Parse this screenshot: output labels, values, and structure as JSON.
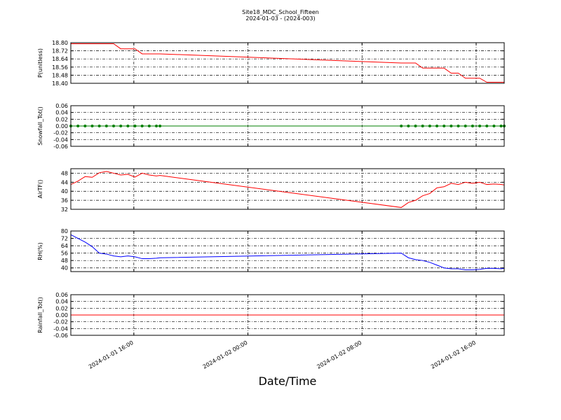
{
  "figure": {
    "title": "Site18_MDC_School_Fifteen",
    "subtitle": "2024-01-03 - (2024-003)",
    "x_label": "Date/Time"
  },
  "chart_data": [
    {
      "type": "line",
      "y_label": "P(unitless)",
      "ylim": [
        18.4,
        18.8
      ],
      "yticks": [
        {
          "value": 18.4,
          "label": "18.40"
        },
        18.48,
        18.56,
        18.64,
        18.72,
        {
          "value": 18.8,
          "label": "18.80"
        }
      ],
      "xlim": [
        "2024-01-01 11:35",
        "2024-01-02 17:58"
      ],
      "xticks": [
        "2024-01-01 16:00",
        "2024-01-02 00:00",
        "2024-01-02 08:00",
        "2024-01-02 16:00"
      ],
      "grid": true,
      "markers": false,
      "x": [
        "2024-01-01 11:35",
        "2024-01-01 12:05",
        "2024-01-01 12:35",
        "2024-01-01 13:05",
        "2024-01-01 13:35",
        "2024-01-01 14:05",
        "2024-01-01 14:35",
        "2024-01-01 15:05",
        "2024-01-01 15:35",
        "2024-01-01 16:05",
        "2024-01-01 16:35",
        "2024-01-01 17:05",
        "2024-01-01 17:35",
        "2024-01-01 17:50",
        "2024-01-02 10:45",
        "2024-01-02 11:15",
        "2024-01-02 11:45",
        "2024-01-02 12:15",
        "2024-01-02 12:45",
        "2024-01-02 13:15",
        "2024-01-02 13:45",
        "2024-01-02 14:15",
        "2024-01-02 14:45",
        "2024-01-02 15:15",
        "2024-01-02 15:45",
        "2024-01-02 16:15",
        "2024-01-02 16:45",
        "2024-01-02 17:15",
        "2024-01-02 17:45",
        "2024-01-02 17:58"
      ],
      "series": [
        {
          "color": "#ff0000",
          "values": [
            18.79,
            18.79,
            18.79,
            18.79,
            18.79,
            18.79,
            18.79,
            18.74,
            18.74,
            18.74,
            18.69,
            18.69,
            18.69,
            18.69,
            18.6,
            18.6,
            18.6,
            18.55,
            18.55,
            18.55,
            18.55,
            18.5,
            18.5,
            18.45,
            18.45,
            18.45,
            18.41,
            18.41,
            18.41,
            18.41
          ]
        }
      ]
    },
    {
      "type": "line",
      "y_label": "Snowfall_Tot()",
      "ylim": [
        -0.06,
        0.06
      ],
      "yticks": [
        -0.06,
        -0.04,
        -0.02,
        {
          "value": 0,
          "label": "0.00"
        },
        0.02,
        0.04,
        0.06
      ],
      "xlim": [
        "2024-01-01 11:35",
        "2024-01-02 17:58"
      ],
      "xticks": [
        "2024-01-01 16:00",
        "2024-01-02 00:00",
        "2024-01-02 08:00",
        "2024-01-02 16:00"
      ],
      "grid": true,
      "markers": true,
      "x": [
        "2024-01-01 11:35",
        "2024-01-01 12:05",
        "2024-01-01 12:35",
        "2024-01-01 13:05",
        "2024-01-01 13:35",
        "2024-01-01 14:05",
        "2024-01-01 14:35",
        "2024-01-01 15:05",
        "2024-01-01 15:35",
        "2024-01-01 16:05",
        "2024-01-01 16:35",
        "2024-01-01 17:05",
        "2024-01-01 17:35",
        "2024-01-01 17:50",
        "2024-01-02 10:45",
        "2024-01-02 11:15",
        "2024-01-02 11:45",
        "2024-01-02 12:15",
        "2024-01-02 12:45",
        "2024-01-02 13:15",
        "2024-01-02 13:45",
        "2024-01-02 14:15",
        "2024-01-02 14:45",
        "2024-01-02 15:15",
        "2024-01-02 15:45",
        "2024-01-02 16:15",
        "2024-01-02 16:45",
        "2024-01-02 17:15",
        "2024-01-02 17:45",
        "2024-01-02 17:58"
      ],
      "series": [
        {
          "color": "#007f00",
          "values": [
            0,
            0,
            0,
            0,
            0,
            0,
            0,
            0,
            0,
            0,
            0,
            0,
            0,
            0,
            0,
            0,
            0,
            0,
            0,
            0,
            0,
            0,
            0,
            0,
            0,
            0,
            0,
            0,
            0,
            0
          ]
        }
      ]
    },
    {
      "type": "line",
      "y_label": "AirTF()",
      "ylim": [
        32,
        50
      ],
      "yticks": [
        32,
        36,
        40,
        44,
        48
      ],
      "xlim": [
        "2024-01-01 11:35",
        "2024-01-02 17:58"
      ],
      "xticks": [
        "2024-01-01 16:00",
        "2024-01-02 00:00",
        "2024-01-02 08:00",
        "2024-01-02 16:00"
      ],
      "grid": true,
      "markers": false,
      "x": [
        "2024-01-01 11:35",
        "2024-01-01 12:05",
        "2024-01-01 12:35",
        "2024-01-01 13:05",
        "2024-01-01 13:35",
        "2024-01-01 14:05",
        "2024-01-01 14:35",
        "2024-01-01 15:05",
        "2024-01-01 15:35",
        "2024-01-01 16:05",
        "2024-01-01 16:35",
        "2024-01-01 17:05",
        "2024-01-01 17:35",
        "2024-01-01 17:50",
        "2024-01-02 10:45",
        "2024-01-02 11:15",
        "2024-01-02 11:45",
        "2024-01-02 12:15",
        "2024-01-02 12:45",
        "2024-01-02 13:15",
        "2024-01-02 13:45",
        "2024-01-02 14:15",
        "2024-01-02 14:45",
        "2024-01-02 15:15",
        "2024-01-02 15:45",
        "2024-01-02 16:15",
        "2024-01-02 16:45",
        "2024-01-02 17:15",
        "2024-01-02 17:45",
        "2024-01-02 17:58"
      ],
      "series": [
        {
          "color": "#ff0000",
          "values": [
            43,
            44.5,
            46.5,
            46.2,
            48.2,
            48.8,
            48,
            47.2,
            47.5,
            46.3,
            48,
            47.2,
            46.8,
            47,
            32.8,
            35,
            36,
            38,
            39,
            41.5,
            42,
            43.5,
            43,
            44,
            43.5,
            44,
            43,
            43.2,
            43,
            42.8
          ]
        }
      ]
    },
    {
      "type": "line",
      "y_label": "RH(%)",
      "ylim": [
        36,
        80
      ],
      "yticks": [
        40,
        48,
        56,
        64,
        72,
        80
      ],
      "xlim": [
        "2024-01-01 11:35",
        "2024-01-02 17:58"
      ],
      "xticks": [
        "2024-01-01 16:00",
        "2024-01-02 00:00",
        "2024-01-02 08:00",
        "2024-01-02 16:00"
      ],
      "grid": true,
      "markers": false,
      "x": [
        "2024-01-01 11:35",
        "2024-01-01 12:05",
        "2024-01-01 12:35",
        "2024-01-01 13:05",
        "2024-01-01 13:35",
        "2024-01-01 14:05",
        "2024-01-01 14:35",
        "2024-01-01 15:05",
        "2024-01-01 15:35",
        "2024-01-01 16:05",
        "2024-01-01 16:35",
        "2024-01-01 17:05",
        "2024-01-01 17:35",
        "2024-01-01 17:50",
        "2024-01-02 10:45",
        "2024-01-02 11:15",
        "2024-01-02 11:45",
        "2024-01-02 12:15",
        "2024-01-02 12:45",
        "2024-01-02 13:15",
        "2024-01-02 13:45",
        "2024-01-02 14:15",
        "2024-01-02 14:45",
        "2024-01-02 15:15",
        "2024-01-02 15:45",
        "2024-01-02 16:15",
        "2024-01-02 16:45",
        "2024-01-02 17:15",
        "2024-01-02 17:45",
        "2024-01-02 17:58"
      ],
      "series": [
        {
          "color": "#0000ff",
          "values": [
            76,
            72,
            68,
            63,
            56,
            55,
            53,
            52,
            53,
            52,
            50,
            50,
            50.5,
            51,
            56,
            51,
            49,
            48,
            46,
            43,
            40,
            39,
            39,
            38,
            38,
            38.5,
            39.5,
            39.5,
            39,
            39.5
          ]
        }
      ]
    },
    {
      "type": "line",
      "y_label": "Rainfall_Tot()",
      "ylim": [
        -0.06,
        0.06
      ],
      "yticks": [
        -0.06,
        -0.04,
        -0.02,
        {
          "value": 0,
          "label": "0.00"
        },
        0.02,
        0.04,
        0.06
      ],
      "xlim": [
        "2024-01-01 11:35",
        "2024-01-02 17:58"
      ],
      "xticks": [
        "2024-01-01 16:00",
        "2024-01-02 00:00",
        "2024-01-02 08:00",
        "2024-01-02 16:00"
      ],
      "grid": true,
      "markers": false,
      "x": [
        "2024-01-01 11:35",
        "2024-01-01 12:05",
        "2024-01-01 12:35",
        "2024-01-01 13:05",
        "2024-01-01 13:35",
        "2024-01-01 14:05",
        "2024-01-01 14:35",
        "2024-01-01 15:05",
        "2024-01-01 15:35",
        "2024-01-01 16:05",
        "2024-01-01 16:35",
        "2024-01-01 17:05",
        "2024-01-01 17:35",
        "2024-01-01 17:50",
        "2024-01-02 10:45",
        "2024-01-02 11:15",
        "2024-01-02 11:45",
        "2024-01-02 12:15",
        "2024-01-02 12:45",
        "2024-01-02 13:15",
        "2024-01-02 13:45",
        "2024-01-02 14:15",
        "2024-01-02 14:45",
        "2024-01-02 15:15",
        "2024-01-02 15:45",
        "2024-01-02 16:15",
        "2024-01-02 16:45",
        "2024-01-02 17:15",
        "2024-01-02 17:45",
        "2024-01-02 17:58"
      ],
      "series": [
        {
          "color": "#ff0000",
          "values": [
            0,
            0,
            0,
            0,
            0,
            0,
            0,
            0,
            0,
            0,
            0,
            0,
            0,
            0,
            0,
            0,
            0,
            0,
            0,
            0,
            0,
            0,
            0,
            0,
            0,
            0,
            0,
            0,
            0,
            0
          ]
        }
      ]
    }
  ]
}
